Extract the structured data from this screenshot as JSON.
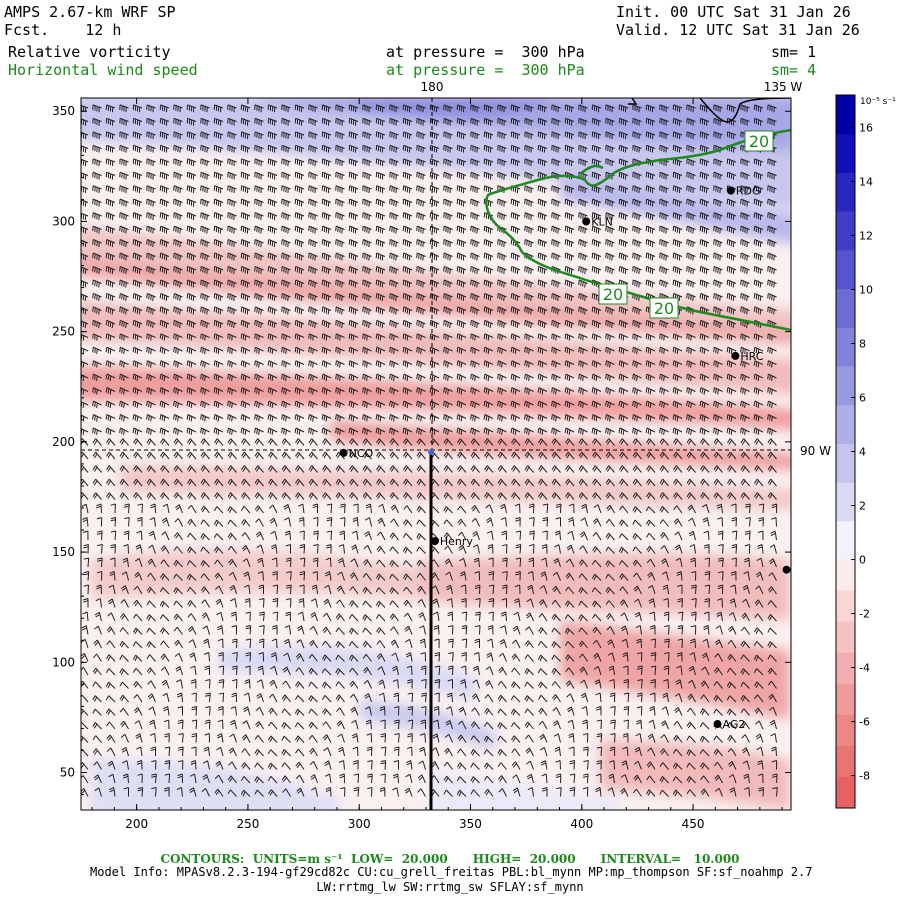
{
  "header": {
    "model": "AMPS 2.67-km WRF SP",
    "fcst": "Fcst.    12 h",
    "init": "Init. 00 UTC Sat 31 Jan 26",
    "valid": "Valid. 12 UTC Sat 31 Jan 26",
    "field1": "Relative vorticity",
    "field1_level": "at pressure =  300 hPa",
    "field1_sm": "sm= 1",
    "field2": "Horizontal wind speed",
    "field2_level": "at pressure =  300 hPa",
    "field2_sm": "sm= 4"
  },
  "map": {
    "meridian_top": "180",
    "meridian_top_right": "135 W",
    "meridian_right": "90 W",
    "x_ticks": [
      "200",
      "250",
      "300",
      "350",
      "400",
      "450"
    ],
    "y_ticks": [
      "350",
      "300",
      "250",
      "200",
      "150",
      "100",
      "50"
    ],
    "contour_labels": [
      "20",
      "20",
      "20"
    ],
    "stations": [
      {
        "name": "RDG",
        "x": 467,
        "y": 314
      },
      {
        "name": "KLN",
        "x": 402,
        "y": 300
      },
      {
        "name": "HRC",
        "x": 469,
        "y": 239
      },
      {
        "name": "NCO",
        "x": 293,
        "y": 195
      },
      {
        "name": "Henry",
        "x": 334,
        "y": 155
      },
      {
        "name": "AG2",
        "x": 461,
        "y": 72
      },
      {
        "name": "",
        "x": 492,
        "y": 142
      }
    ]
  },
  "colorbar": {
    "unit": "10⁻⁵ s⁻¹",
    "ticks": [
      "16",
      "14",
      "12",
      "10",
      "8",
      "6",
      "4",
      "2",
      "0",
      "-2",
      "-4",
      "-6",
      "-8"
    ],
    "colors_positive": [
      "#f2f2fb",
      "#dadaf4",
      "#c4c4ee",
      "#afafe8",
      "#9999e2",
      "#8383dc",
      "#6c6cd5",
      "#5555cf",
      "#3e3ec8",
      "#2727c0",
      "#1010b8",
      "#0000a8"
    ],
    "colors_negative": [
      "#fbeaea",
      "#f8d6d6",
      "#f5c2c2",
      "#f2aeae",
      "#ef9a9a",
      "#ec8787",
      "#e97474",
      "#e66262"
    ]
  },
  "footer": {
    "contours": "CONTOURS:  UNITS=m s⁻¹  LOW=  20.000      HIGH=  20.000      INTERVAL=   10.000",
    "model_info": "Model Info: MPASv8.2.3-194-gf29cd82c CU:cu_grell_freitas PBL:bl_mynn MP:mp_thompson SF:sf_noahmp 2.7",
    "model_info2": "LW:rrtmg_lw SW:rrtmg_sw SFLAY:sf_mynn"
  }
}
